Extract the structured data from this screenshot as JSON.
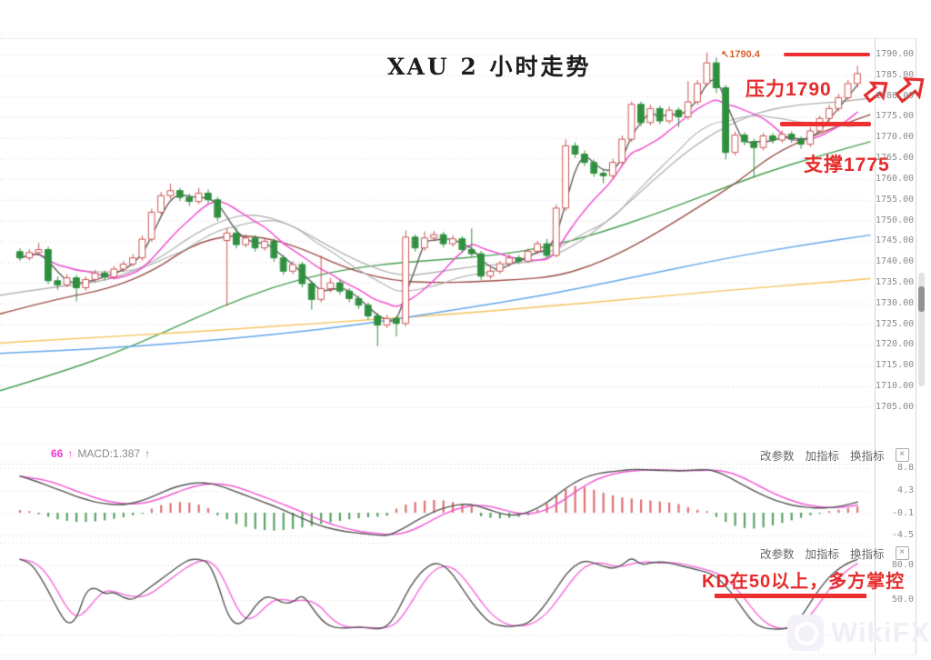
{
  "title": {
    "text": "XAU 2 小时走势"
  },
  "annotations": {
    "peak_price_tag": "1790.4",
    "peak_arrow": "↖",
    "resistance_label": "压力1790",
    "support_label": "支撑1775",
    "kd_note": "KD在50以上，多方掌控"
  },
  "macd_header": {
    "value": "66",
    "arrow1": "↑",
    "label": "MACD:1.387",
    "arrow2": "↑"
  },
  "panel_controls": {
    "change_params": "改参数",
    "add_indicator": "加指标",
    "switch_indicator": "换指标",
    "close": "×"
  },
  "watermark": {
    "text": "WikiFX"
  },
  "colors": {
    "annotation_red": "#e62b2b",
    "level_line_red": "#ed2f2f",
    "candle_up": "#cc5552",
    "candle_down": "#2f8f3f",
    "ma_fast": "#606060",
    "ma_magenta": "#f24fd2",
    "ma_mid_gray": "#b5b5b5",
    "ma_brown": "#9b4f47",
    "ma_green": "#46a050",
    "ma_orange": "#f6c35c",
    "ma_blue": "#64a8ea",
    "grid": "#dcdcdc"
  },
  "chart_data": {
    "type": "candlestick",
    "title": "XAU 2 小时走势",
    "price_ticks": [
      "1790.00",
      "1785.00",
      "1780.00",
      "1775.00",
      "1770.00",
      "1765.00",
      "1760.00",
      "1755.00",
      "1750.00",
      "1745.00",
      "1740.00",
      "1735.00",
      "1730.00",
      "1725.00",
      "1720.00",
      "1715.00",
      "1710.00",
      "1705.00"
    ],
    "ylim": [
      1705,
      1790
    ],
    "up_style": "hollow-red",
    "down_style": "solid-green",
    "resistance_level": 1790,
    "support_level": 1775,
    "candles": [
      [
        1742.5,
        1743.2,
        1740.4,
        1741.0
      ],
      [
        1741.0,
        1743.0,
        1740.5,
        1742.3
      ],
      [
        1742.3,
        1744.5,
        1741.8,
        1743.0
      ],
      [
        1743.0,
        1743.6,
        1734.8,
        1735.5
      ],
      [
        1735.5,
        1736.4,
        1733.4,
        1734.5
      ],
      [
        1734.5,
        1737.0,
        1734.0,
        1736.2
      ],
      [
        1736.2,
        1736.8,
        1730.6,
        1733.8
      ],
      [
        1733.8,
        1736.4,
        1733.2,
        1735.8
      ],
      [
        1735.8,
        1738.0,
        1735.2,
        1737.3
      ],
      [
        1737.3,
        1737.9,
        1735.7,
        1736.4
      ],
      [
        1736.4,
        1739.0,
        1735.9,
        1738.3
      ],
      [
        1738.3,
        1740.2,
        1737.7,
        1739.5
      ],
      [
        1739.5,
        1741.8,
        1739.0,
        1741.0
      ],
      [
        1741.0,
        1746.3,
        1740.4,
        1745.5
      ],
      [
        1745.5,
        1752.8,
        1745.0,
        1752.0
      ],
      [
        1752.0,
        1756.8,
        1751.4,
        1756.0
      ],
      [
        1756.0,
        1758.8,
        1755.2,
        1757.2
      ],
      [
        1757.2,
        1757.8,
        1754.8,
        1755.6
      ],
      [
        1755.6,
        1756.4,
        1753.6,
        1754.6
      ],
      [
        1754.6,
        1757.8,
        1754.0,
        1756.6
      ],
      [
        1756.6,
        1757.4,
        1754.2,
        1755.0
      ],
      [
        1755.0,
        1755.6,
        1750.0,
        1750.8
      ],
      [
        1745.2,
        1748.0,
        1729.5,
        1747.0
      ],
      [
        1747.0,
        1748.2,
        1743.4,
        1744.2
      ],
      [
        1744.2,
        1746.6,
        1743.6,
        1745.8
      ],
      [
        1745.8,
        1746.4,
        1742.6,
        1743.4
      ],
      [
        1743.4,
        1745.8,
        1742.8,
        1745.0
      ],
      [
        1745.0,
        1745.6,
        1740.2,
        1741.0
      ],
      [
        1741.0,
        1741.6,
        1737.0,
        1737.8
      ],
      [
        1737.8,
        1740.2,
        1737.2,
        1739.4
      ],
      [
        1739.4,
        1739.9,
        1734.0,
        1734.8
      ],
      [
        1734.8,
        1735.4,
        1728.6,
        1731.0
      ],
      [
        1731.0,
        1741.5,
        1730.4,
        1733.6
      ],
      [
        1733.6,
        1736.0,
        1732.8,
        1735.0
      ],
      [
        1735.0,
        1735.6,
        1732.2,
        1733.0
      ],
      [
        1733.0,
        1733.6,
        1730.4,
        1731.2
      ],
      [
        1731.2,
        1731.8,
        1728.8,
        1729.6
      ],
      [
        1729.6,
        1730.2,
        1726.2,
        1727.0
      ],
      [
        1727.0,
        1727.6,
        1719.8,
        1724.8
      ],
      [
        1724.8,
        1727.2,
        1724.2,
        1726.4
      ],
      [
        1726.4,
        1727.0,
        1722.2,
        1725.2
      ],
      [
        1725.2,
        1747.5,
        1724.6,
        1746.0
      ],
      [
        1746.0,
        1746.6,
        1742.6,
        1743.4
      ],
      [
        1743.4,
        1747.3,
        1742.8,
        1745.8
      ],
      [
        1745.8,
        1747.4,
        1745.2,
        1746.6
      ],
      [
        1746.6,
        1747.2,
        1743.6,
        1744.4
      ],
      [
        1744.4,
        1746.4,
        1743.8,
        1745.6
      ],
      [
        1745.6,
        1746.2,
        1742.4,
        1743.0
      ],
      [
        1743.0,
        1748.0,
        1741.4,
        1742.0
      ],
      [
        1742.0,
        1742.6,
        1735.8,
        1736.6
      ],
      [
        1736.6,
        1738.6,
        1736.0,
        1737.8
      ],
      [
        1737.8,
        1740.2,
        1737.2,
        1739.6
      ],
      [
        1739.6,
        1741.8,
        1739.0,
        1741.0
      ],
      [
        1741.0,
        1741.6,
        1739.6,
        1740.2
      ],
      [
        1740.2,
        1743.2,
        1739.8,
        1742.6
      ],
      [
        1742.6,
        1745.0,
        1742.0,
        1744.4
      ],
      [
        1744.4,
        1745.5,
        1741.0,
        1741.6
      ],
      [
        1741.6,
        1753.8,
        1741.2,
        1753.0
      ],
      [
        1753.0,
        1769.5,
        1752.4,
        1768.0
      ],
      [
        1768.0,
        1768.8,
        1765.2,
        1766.0
      ],
      [
        1766.0,
        1766.8,
        1763.2,
        1764.0
      ],
      [
        1764.0,
        1764.6,
        1760.6,
        1761.4
      ],
      [
        1761.4,
        1762.2,
        1759.0,
        1760.8
      ],
      [
        1760.8,
        1764.8,
        1760.2,
        1764.0
      ],
      [
        1764.0,
        1770.4,
        1763.4,
        1769.6
      ],
      [
        1769.6,
        1778.6,
        1769.0,
        1778.0
      ],
      [
        1778.0,
        1778.6,
        1772.8,
        1773.6
      ],
      [
        1773.6,
        1777.8,
        1773.0,
        1777.0
      ],
      [
        1777.0,
        1777.6,
        1773.2,
        1774.0
      ],
      [
        1774.0,
        1777.4,
        1773.4,
        1776.6
      ],
      [
        1776.6,
        1777.2,
        1772.6,
        1775.0
      ],
      [
        1775.0,
        1783.5,
        1774.4,
        1778.6
      ],
      [
        1778.6,
        1783.8,
        1778.0,
        1783.0
      ],
      [
        1783.0,
        1790.4,
        1782.4,
        1788.0
      ],
      [
        1788.0,
        1789.2,
        1780.8,
        1782.0
      ],
      [
        1782.0,
        1782.6,
        1764.8,
        1766.4
      ],
      [
        1766.4,
        1771.4,
        1765.8,
        1770.6
      ],
      [
        1770.6,
        1771.2,
        1768.2,
        1769.0
      ],
      [
        1769.0,
        1769.6,
        1760.5,
        1767.6
      ],
      [
        1767.6,
        1771.0,
        1767.0,
        1770.4
      ],
      [
        1770.4,
        1771.0,
        1768.6,
        1769.4
      ],
      [
        1769.4,
        1771.6,
        1768.8,
        1770.8
      ],
      [
        1770.8,
        1771.4,
        1768.8,
        1769.6
      ],
      [
        1769.6,
        1770.2,
        1767.4,
        1768.4
      ],
      [
        1768.4,
        1772.4,
        1767.8,
        1771.6
      ],
      [
        1771.6,
        1775.2,
        1771.0,
        1774.6
      ],
      [
        1774.6,
        1777.8,
        1774.0,
        1777.0
      ],
      [
        1777.0,
        1780.4,
        1776.4,
        1779.6
      ],
      [
        1779.6,
        1783.8,
        1779.0,
        1783.0
      ],
      [
        1783.0,
        1787.2,
        1782.2,
        1785.4
      ]
    ],
    "overlay_ma": {
      "green": [
        [
          0,
          1709
        ],
        [
          60,
          1713
        ],
        [
          120,
          1717.5
        ],
        [
          180,
          1723
        ],
        [
          240,
          1729
        ],
        [
          300,
          1734
        ],
        [
          360,
          1737.5
        ],
        [
          420,
          1739.5
        ],
        [
          480,
          1740.5
        ],
        [
          540,
          1741.5
        ],
        [
          600,
          1743.5
        ],
        [
          660,
          1747
        ],
        [
          720,
          1751.5
        ],
        [
          780,
          1756.5
        ],
        [
          840,
          1761.5
        ],
        [
          900,
          1765.5
        ],
        [
          957,
          1769
        ]
      ],
      "orange": [
        [
          0,
          1720.5
        ],
        [
          100,
          1721.8
        ],
        [
          200,
          1723
        ],
        [
          300,
          1724.5
        ],
        [
          400,
          1726
        ],
        [
          500,
          1727.5
        ],
        [
          600,
          1729.3
        ],
        [
          700,
          1731.2
        ],
        [
          800,
          1733.2
        ],
        [
          880,
          1734.6
        ],
        [
          957,
          1736
        ]
      ],
      "blue": [
        [
          0,
          1718
        ],
        [
          100,
          1719
        ],
        [
          200,
          1720.5
        ],
        [
          300,
          1722.5
        ],
        [
          400,
          1725
        ],
        [
          500,
          1728.5
        ],
        [
          600,
          1732
        ],
        [
          700,
          1736.5
        ],
        [
          800,
          1741
        ],
        [
          880,
          1744
        ],
        [
          957,
          1746.5
        ]
      ],
      "brown": [
        [
          0,
          1727.5
        ],
        [
          60,
          1731
        ],
        [
          120,
          1733.5
        ],
        [
          170,
          1738
        ],
        [
          210,
          1744
        ],
        [
          250,
          1746.5
        ],
        [
          290,
          1746
        ],
        [
          330,
          1743.5
        ],
        [
          380,
          1738.5
        ],
        [
          430,
          1735.5
        ],
        [
          480,
          1735
        ],
        [
          530,
          1735.3
        ],
        [
          570,
          1735.8
        ],
        [
          610,
          1736.5
        ],
        [
          650,
          1739
        ],
        [
          690,
          1743
        ],
        [
          730,
          1748
        ],
        [
          770,
          1753.5
        ],
        [
          810,
          1759
        ],
        [
          850,
          1766
        ],
        [
          900,
          1771
        ],
        [
          957,
          1775.5
        ]
      ],
      "lightgray": [
        [
          0,
          1732
        ],
        [
          60,
          1734
        ],
        [
          120,
          1735.5
        ],
        [
          170,
          1740
        ],
        [
          215,
          1747
        ],
        [
          255,
          1751
        ],
        [
          285,
          1751.5
        ],
        [
          320,
          1749
        ],
        [
          360,
          1744
        ],
        [
          400,
          1739.5
        ],
        [
          440,
          1736.5
        ],
        [
          480,
          1737.5
        ],
        [
          520,
          1739
        ],
        [
          560,
          1739.5
        ],
        [
          600,
          1740.5
        ],
        [
          640,
          1745
        ],
        [
          680,
          1752
        ],
        [
          720,
          1760
        ],
        [
          760,
          1767.5
        ],
        [
          800,
          1773
        ],
        [
          840,
          1776.5
        ],
        [
          880,
          1778
        ],
        [
          920,
          1778.5
        ],
        [
          957,
          1779.5
        ]
      ]
    },
    "macd": {
      "ticks": [
        "8.8",
        "4.3",
        "-0.1",
        "-4.5"
      ],
      "tick_values": [
        8.8,
        4.3,
        -0.1,
        -4.5
      ],
      "dif": [
        7.2,
        6.6,
        6.0,
        5.3,
        4.6,
        3.9,
        3.2,
        2.6,
        2.1,
        1.8,
        1.6,
        1.6,
        1.9,
        2.4,
        3.1,
        3.9,
        4.7,
        5.3,
        5.7,
        5.9,
        5.8,
        5.4,
        4.8,
        4.1,
        3.4,
        2.7,
        2.0,
        1.3,
        0.5,
        -0.3,
        -1.1,
        -1.9,
        -2.6,
        -3.1,
        -3.5,
        -3.8,
        -4.0,
        -4.2,
        -4.4,
        -4.5,
        -3.8,
        -2.8,
        -1.7,
        -0.7,
        0.2,
        0.9,
        1.4,
        1.7,
        1.6,
        1.1,
        0.5,
        -0.1,
        -0.5,
        -0.4,
        0.1,
        0.9,
        2.0,
        3.4,
        4.8,
        6.0,
        6.9,
        7.5,
        7.9,
        8.1,
        8.3,
        8.5,
        8.5,
        8.4,
        8.3,
        8.3,
        8.2,
        8.3,
        8.4,
        8.5,
        8.1,
        7.3,
        6.3,
        5.3,
        4.3,
        3.4,
        2.6,
        2.0,
        1.5,
        1.2,
        1.0,
        0.9,
        1.0,
        1.2,
        1.6,
        2.1
      ],
      "hist": [
        0.5,
        0.3,
        -0.3,
        -0.8,
        -1.3,
        -1.6,
        -1.8,
        -1.8,
        -1.7,
        -1.5,
        -1.2,
        -0.9,
        -0.5,
        -0.2,
        0.8,
        1.5,
        1.9,
        2.1,
        2.0,
        1.6,
        0.9,
        -0.5,
        -1.3,
        -2.2,
        -2.8,
        -3.2,
        -3.4,
        -3.5,
        -3.4,
        -3.2,
        -2.9,
        -2.6,
        -2.2,
        -1.9,
        -1.6,
        -1.3,
        -1.1,
        -0.9,
        -0.8,
        -0.6,
        0.8,
        1.6,
        2.1,
        2.4,
        2.5,
        2.4,
        2.1,
        1.7,
        1.2,
        -0.7,
        -1.0,
        -1.1,
        -1.0,
        -0.8,
        -0.5,
        0.6,
        1.8,
        3.4,
        4.6,
        5.2,
        5.0,
        4.5,
        3.9,
        3.4,
        3.0,
        2.8,
        2.6,
        2.4,
        2.2,
        2.0,
        1.7,
        1.1,
        0.6,
        0.3,
        -0.8,
        -1.8,
        -2.6,
        -3.0,
        -3.1,
        -2.9,
        -2.5,
        -2.0,
        -1.5,
        -1.0,
        -0.5,
        -0.2,
        0.3,
        0.6,
        0.9,
        1.2
      ]
    },
    "kd": {
      "ticks": [
        "80.0",
        "50.0"
      ],
      "tick_values": [
        80,
        50
      ],
      "k": [
        85,
        83,
        72,
        58,
        42,
        29,
        33,
        58,
        61,
        55,
        57,
        52,
        50,
        56,
        62,
        68,
        74,
        80,
        85,
        85,
        83,
        65,
        38,
        28,
        33,
        45,
        53,
        52,
        47,
        48,
        55,
        44,
        33,
        27,
        26,
        26,
        27,
        26,
        25,
        27,
        38,
        55,
        68,
        77,
        82,
        80,
        72,
        60,
        48,
        38,
        30,
        28,
        27,
        28,
        30,
        38,
        48,
        60,
        72,
        80,
        84,
        82,
        79,
        77,
        80,
        87,
        80,
        82,
        83,
        82,
        80,
        78,
        76,
        74,
        70,
        62,
        52,
        40,
        30,
        26,
        25,
        25,
        27,
        35,
        48,
        60,
        70,
        77,
        82,
        85
      ]
    }
  }
}
